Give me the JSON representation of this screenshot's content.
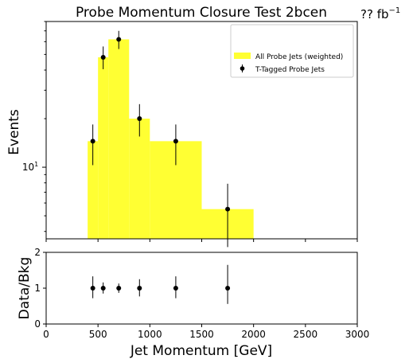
{
  "chart_data": [
    {
      "type": "bar",
      "title": "Probe Momentum Closure Test 2bcen",
      "lumi_label": "?? fb",
      "lumi_exp": "−1",
      "ylabel": "Events",
      "yscale": "log",
      "ylim": [
        3.6,
        80
      ],
      "xlim": [
        0,
        3000
      ],
      "y_ticks": [
        {
          "value": 10,
          "label": "10",
          "exp": "1"
        }
      ],
      "legend_position": "top-right",
      "series": [
        {
          "name": "All Probe Jets (weighted)",
          "kind": "histogram",
          "color": "#ffff33",
          "bins": [
            {
              "x0": 400,
              "x1": 500,
              "y": 14.5
            },
            {
              "x0": 500,
              "x1": 600,
              "y": 48
            },
            {
              "x0": 600,
              "x1": 800,
              "y": 62
            },
            {
              "x0": 800,
              "x1": 1000,
              "y": 20
            },
            {
              "x0": 1000,
              "x1": 1500,
              "y": 14.5
            },
            {
              "x0": 1500,
              "x1": 2000,
              "y": 5.5
            }
          ]
        },
        {
          "name": "T-Tagged Probe Jets",
          "kind": "errorbar",
          "color": "#000000",
          "points": [
            {
              "x": 450,
              "y": 14.5,
              "lo": 10.3,
              "hi": 18.4
            },
            {
              "x": 550,
              "y": 48,
              "lo": 40.5,
              "hi": 56
            },
            {
              "x": 700,
              "y": 62,
              "lo": 54,
              "hi": 70
            },
            {
              "x": 900,
              "y": 20,
              "lo": 15.5,
              "hi": 24.6
            },
            {
              "x": 1250,
              "y": 14.5,
              "lo": 10.3,
              "hi": 18.4
            },
            {
              "x": 1750,
              "y": 5.5,
              "lo": 3.2,
              "hi": 7.9
            }
          ]
        }
      ]
    },
    {
      "type": "scatter",
      "ylabel": "Data/Bkg",
      "xlabel": "Jet Momentum [GeV]",
      "xlim": [
        0,
        3000
      ],
      "ylim": [
        0,
        2
      ],
      "x_ticks": [
        0,
        500,
        1000,
        1500,
        2000,
        2500,
        3000
      ],
      "y_ticks": [
        0,
        1,
        2
      ],
      "points": [
        {
          "x": 450,
          "y": 1,
          "lo": 0.72,
          "hi": 1.33
        },
        {
          "x": 550,
          "y": 1,
          "lo": 0.85,
          "hi": 1.16
        },
        {
          "x": 700,
          "y": 1,
          "lo": 0.87,
          "hi": 1.13
        },
        {
          "x": 900,
          "y": 1,
          "lo": 0.77,
          "hi": 1.25
        },
        {
          "x": 1250,
          "y": 1,
          "lo": 0.72,
          "hi": 1.33
        },
        {
          "x": 1750,
          "y": 1,
          "lo": 0.56,
          "hi": 1.65
        }
      ]
    }
  ]
}
